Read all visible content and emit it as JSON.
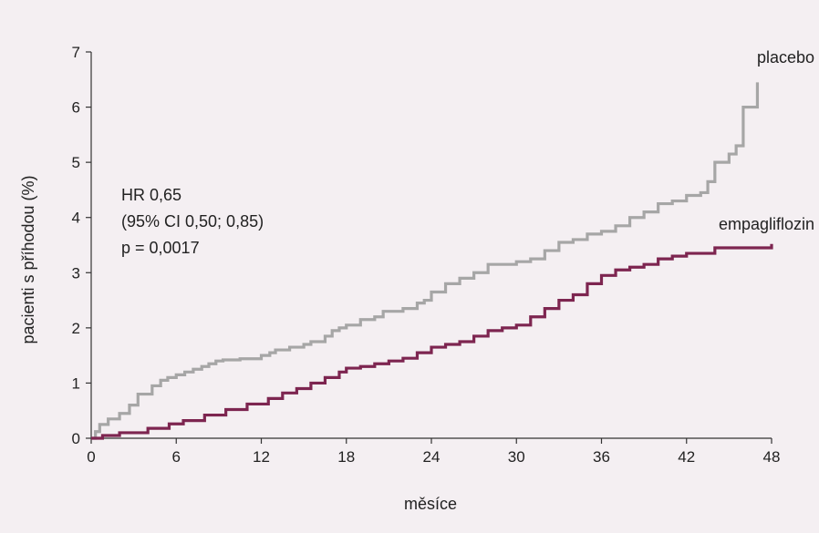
{
  "chart_data": {
    "type": "line",
    "step": true,
    "xlabel": "měsíce",
    "ylabel": "pacienti s příhodou (%)",
    "xlim": [
      0,
      48
    ],
    "ylim": [
      0,
      7
    ],
    "x_ticks": [
      "0",
      "6",
      "12",
      "18",
      "24",
      "30",
      "36",
      "42",
      "48"
    ],
    "x_tick_values": [
      0,
      6,
      12,
      18,
      24,
      30,
      36,
      42,
      48
    ],
    "y_ticks": [
      "0",
      "1",
      "2",
      "3",
      "4",
      "5",
      "6",
      "7"
    ],
    "y_tick_values": [
      0,
      1,
      2,
      3,
      4,
      5,
      6,
      7
    ],
    "grid": false,
    "annotation": [
      "HR 0,65",
      "(95% CI 0,50; 0,85)",
      "p = 0,0017"
    ],
    "series": [
      {
        "name": "placebo",
        "color": "#a6a6a6",
        "x": [
          0,
          0.3,
          0.6,
          1.2,
          2,
          2.7,
          3.3,
          4.3,
          4.9,
          5.4,
          6,
          6.6,
          7.2,
          7.8,
          8.3,
          8.8,
          9.3,
          10.5,
          12,
          12.6,
          13,
          14,
          15,
          15.5,
          16.5,
          17,
          17.5,
          18,
          19,
          20,
          20.6,
          22,
          23,
          23.5,
          24,
          25,
          26,
          27,
          28,
          30,
          31,
          32,
          33,
          34,
          35,
          36,
          37,
          38,
          39,
          40,
          41,
          42,
          43,
          43.5,
          44,
          45,
          45.5,
          46,
          47
        ],
        "y": [
          0,
          0.12,
          0.25,
          0.35,
          0.45,
          0.6,
          0.8,
          0.95,
          1.05,
          1.1,
          1.15,
          1.2,
          1.25,
          1.3,
          1.35,
          1.4,
          1.42,
          1.44,
          1.5,
          1.55,
          1.6,
          1.65,
          1.7,
          1.75,
          1.85,
          1.95,
          2.0,
          2.05,
          2.15,
          2.2,
          2.3,
          2.35,
          2.45,
          2.5,
          2.65,
          2.8,
          2.9,
          3.0,
          3.15,
          3.2,
          3.25,
          3.4,
          3.55,
          3.6,
          3.7,
          3.75,
          3.85,
          4.0,
          4.1,
          4.25,
          4.3,
          4.4,
          4.45,
          4.65,
          5.0,
          5.15,
          5.3,
          6.0,
          6.45
        ]
      },
      {
        "name": "empagliflozin",
        "color": "#7d2550",
        "x": [
          0,
          0.8,
          2,
          4,
          5.5,
          6.5,
          8,
          9.5,
          11,
          12.5,
          13.5,
          14.5,
          15.5,
          16.5,
          17.5,
          18,
          19,
          20,
          21,
          22,
          23,
          24,
          25,
          26,
          27,
          28,
          29,
          30,
          31,
          32,
          33,
          34,
          35,
          36,
          37,
          38,
          39,
          40,
          41,
          42,
          44,
          48
        ],
        "y": [
          0,
          0.05,
          0.1,
          0.18,
          0.26,
          0.32,
          0.42,
          0.52,
          0.62,
          0.72,
          0.82,
          0.9,
          1.0,
          1.1,
          1.2,
          1.27,
          1.3,
          1.35,
          1.4,
          1.45,
          1.55,
          1.65,
          1.7,
          1.75,
          1.85,
          1.95,
          2.0,
          2.05,
          2.2,
          2.35,
          2.5,
          2.6,
          2.8,
          2.95,
          3.05,
          3.1,
          3.15,
          3.25,
          3.3,
          3.35,
          3.45,
          3.52
        ]
      }
    ]
  }
}
